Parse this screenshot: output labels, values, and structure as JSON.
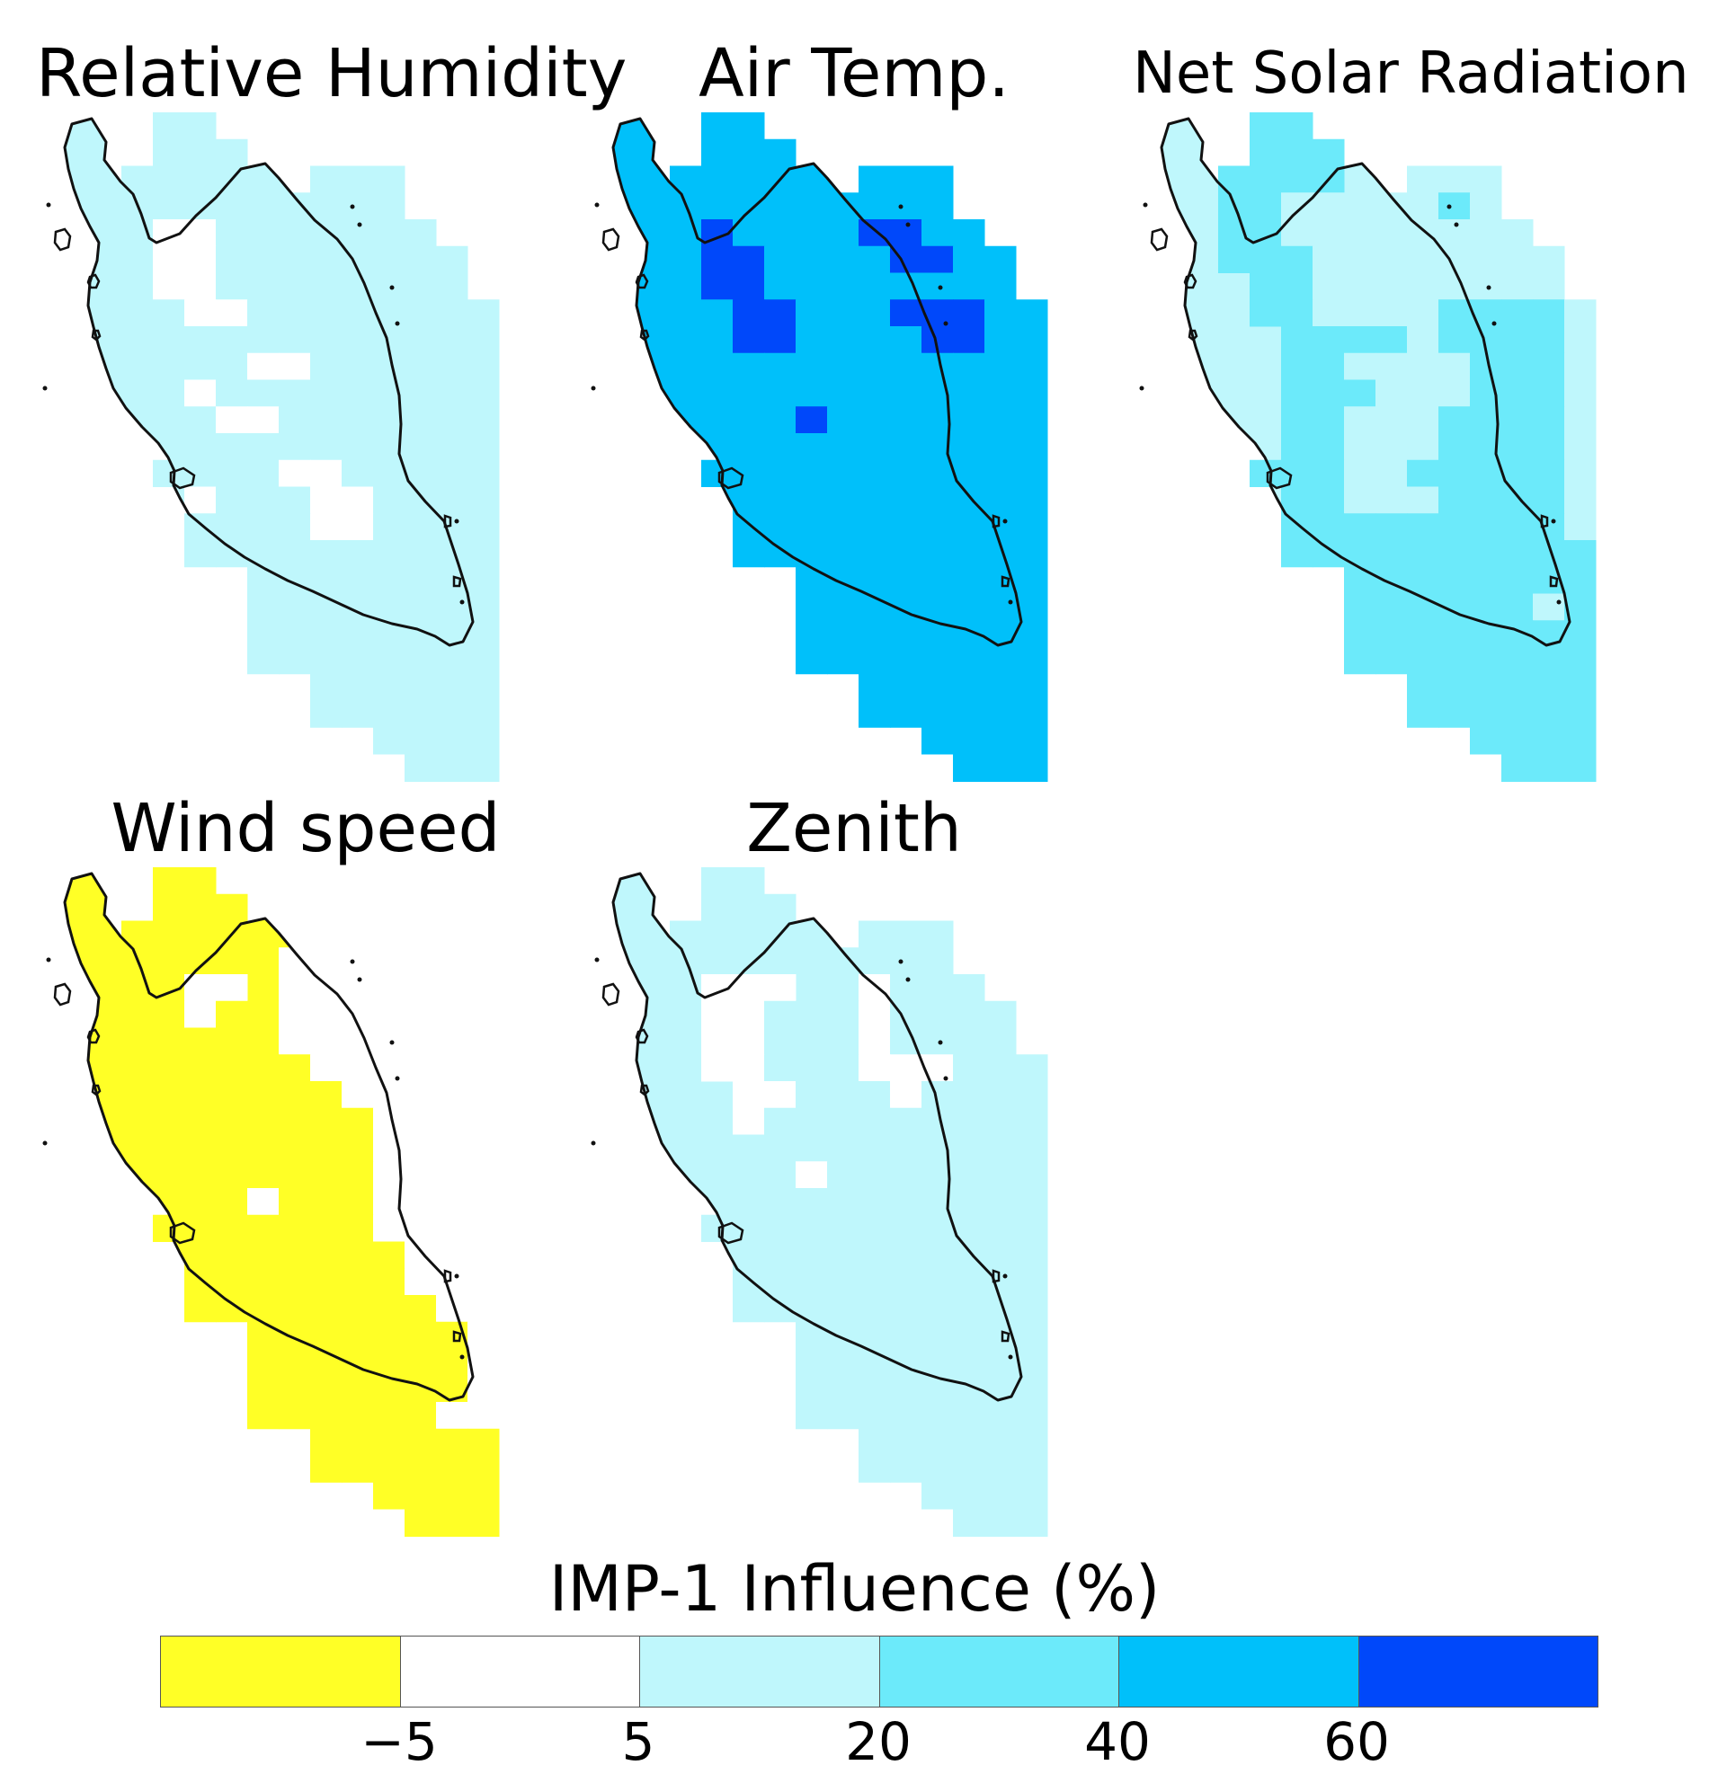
{
  "legend": {
    "title": "IMP-1 Influence (%)",
    "bins": [
      {
        "label": "< -5",
        "color": "#ffff26"
      },
      {
        "label": "-5 to 5",
        "color": "#ffffff"
      },
      {
        "label": "5 to 20",
        "color": "#bff7fc"
      },
      {
        "label": "20 to 40",
        "color": "#6ceafa"
      },
      {
        "label": "40 to 60",
        "color": "#00c0fa"
      },
      {
        "label": "> 60",
        "color": "#0048fa"
      }
    ],
    "ticks": [
      "−5",
      "5",
      "20",
      "40",
      "60"
    ]
  },
  "panels": [
    {
      "title": "Relative Humidity",
      "base_bin": 2,
      "grid": [
        "...22.........",
        "...222........",
        "..2222..222...",
        "..2222.2222...",
        "..2112.22222..",
        "..21122222222.",
        "...1122222222.",
        "...21122222222",
        "....2222222222",
        "....2211222222",
        "....1222222222",
        "....2112222222",
        "....2222222222",
        "...22221122222",
        "....1222112222",
        "....2222112222",
        "....2222222222",
        "......22222222",
        "......22222222",
        "......22222222",
        "......22222222",
        "........222222",
        "........222222",
        "..........2222",
        "...........222",
        "...........222",
        "............22"
      ]
    },
    {
      "title": "Air Temp.",
      "base_bin": 4,
      "grid": [
        "...44.........",
        "...444........",
        "..4444..444...",
        "..4444.4444...",
        "..4544.45544..",
        "..45544445544.",
        "...5544444444.",
        "...45544455544",
        "....5544445544",
        "....4444444444",
        "....4444444444",
        "....4454444444",
        "....4444444444",
        "...44444444444",
        "....4444444444",
        "....4444444444",
        "....4444444444",
        "......44444444",
        "......44444444",
        "......44444444",
        "......44444444",
        "........444444",
        "........444444",
        "..........4444",
        "...........444",
        "...........444",
        "............44"
      ]
    },
    {
      "title": "Net Solar Radiation",
      "base_bin": 2,
      "grid": [
        "...33.........",
        "...333........",
        "..3333..222...",
        "..3322.2232...",
        "..3322.22222..",
        "..33322222222.",
        "...3322222222.",
        "...33222233332",
        "....3333233332",
        "....3322223332",
        "....3332223332",
        "....3322233332",
        "....3322233332",
        "...33322333332",
        "....3322233332",
        "....3333333332",
        "....3333333333",
        "......33333333",
        "......33333323",
        "......33333333",
        "......33333333",
        "........333333",
        "........333333",
        "..........3333",
        "...........333",
        "...........333",
        "............33"
      ]
    },
    {
      "title": "Wind speed",
      "base_bin": 0,
      "grid": [
        "...00.........",
        "...000........",
        "..0000..111...",
        "..0000.1111...",
        "..0011.11111..",
        "..00100111111.",
        "...0000111111.",
        "...00000111111",
        "....0000011111",
        "....0000001111",
        "....0000001111",
        "....0000001111",
        "....0010001111",
        "...00000001111",
        "....0000000111",
        "....0000000111",
        "....0000000011",
        "......00000001",
        "......00000001",
        "......00000001",
        "......00000011",
        "........000000",
        "........000000",
        "..........0000",
        "...........000",
        "...........000",
        "............00"
      ]
    },
    {
      "title": "Zenith",
      "base_bin": 2,
      "grid": [
        "...22.........",
        "...222........",
        "..2222..222...",
        "..2222.2222...",
        "..2111.21222..",
        "..21122212222.",
        "...1122212222.",
        "...11222111222",
        "....1122212222",
        "....1222222222",
        "....2222222222",
        "....2212222222",
        "....2222222222",
        "...22222222222",
        "....2222222222",
        "....2222222222",
        "....2222222222",
        "......22222222",
        "......22222222",
        "......22222222",
        "......22222222",
        "........222222",
        "........222222",
        "..........2222",
        "...........222",
        "...........222",
        "............22"
      ]
    }
  ]
}
